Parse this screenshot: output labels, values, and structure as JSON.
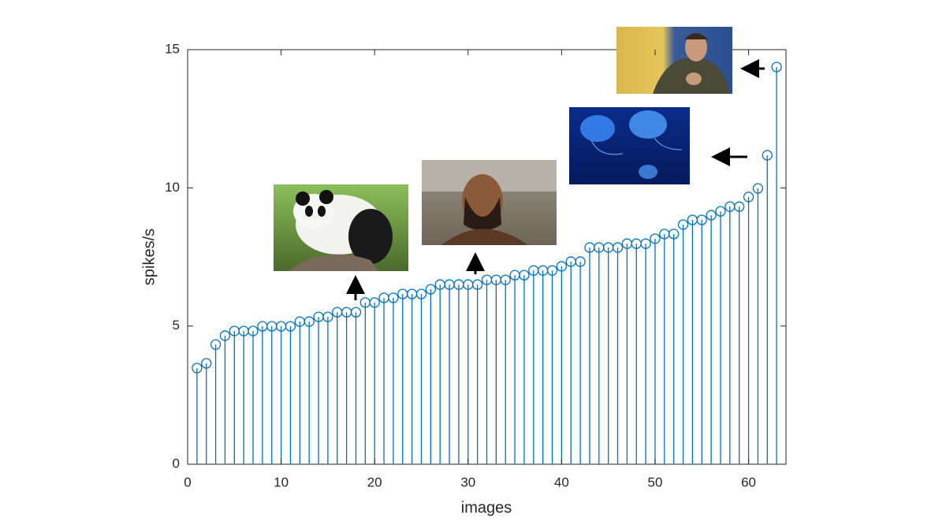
{
  "chart_data": {
    "type": "stem",
    "color": "#0072bd",
    "x_label": "images",
    "y_label": "spikes/s",
    "x": [
      1,
      2,
      3,
      4,
      5,
      6,
      7,
      8,
      9,
      10,
      11,
      12,
      13,
      14,
      15,
      16,
      17,
      18,
      19,
      20,
      21,
      22,
      23,
      24,
      25,
      26,
      27,
      28,
      29,
      30,
      31,
      32,
      33,
      34,
      35,
      36,
      37,
      38,
      39,
      40,
      41,
      42,
      43,
      44,
      45,
      46,
      47,
      48,
      49,
      50,
      51,
      52,
      53,
      54,
      55,
      56,
      57,
      58,
      59,
      60,
      61,
      62,
      63
    ],
    "values": [
      3.48,
      3.65,
      4.33,
      4.65,
      4.82,
      4.82,
      4.82,
      4.99,
      4.99,
      4.99,
      4.99,
      5.16,
      5.16,
      5.33,
      5.33,
      5.5,
      5.5,
      5.5,
      5.85,
      5.85,
      6.02,
      6.02,
      6.16,
      6.16,
      6.16,
      6.33,
      6.5,
      6.5,
      6.5,
      6.5,
      6.5,
      6.67,
      6.67,
      6.67,
      6.84,
      6.84,
      7.01,
      7.01,
      7.01,
      7.16,
      7.33,
      7.33,
      7.84,
      7.84,
      7.84,
      7.84,
      7.98,
      7.98,
      7.98,
      8.16,
      8.33,
      8.33,
      8.67,
      8.84,
      8.84,
      9.01,
      9.15,
      9.32,
      9.32,
      9.67,
      9.98,
      11.18,
      14.37
    ],
    "xlim": [
      0,
      64
    ],
    "xticks": [
      0,
      10,
      20,
      30,
      40,
      50,
      60
    ],
    "ylim": [
      0,
      15
    ],
    "yticks": [
      0,
      5,
      10,
      15
    ]
  }
}
